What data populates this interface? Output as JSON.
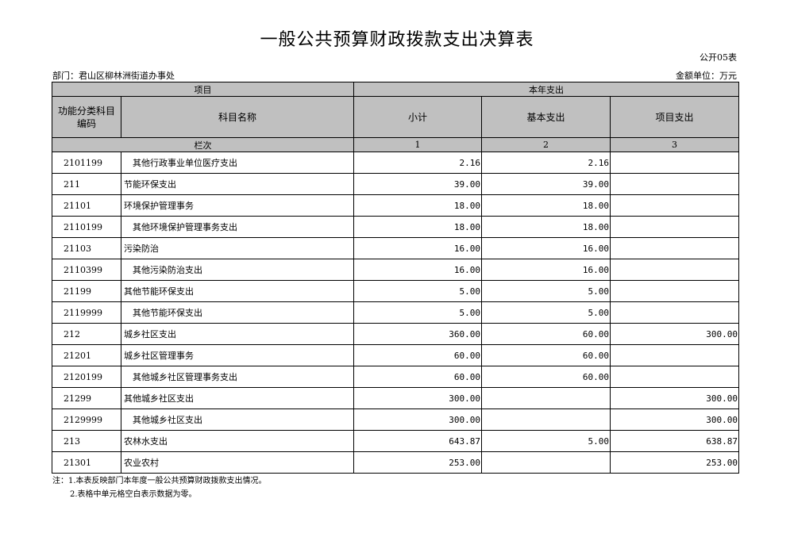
{
  "title": "一般公共预算财政拨款支出决算表",
  "table_no": "公开05表",
  "department": "部门：君山区柳林洲街道办事处",
  "unit": "金额单位：万元",
  "header": {
    "item": "项目",
    "current_year": "本年支出",
    "code": "功能分类科目编码",
    "name": "科目名称",
    "subtotal": "小计",
    "basic": "基本支出",
    "project": "项目支出",
    "column_no": "栏次",
    "col1": "1",
    "col2": "2",
    "col3": "3"
  },
  "rows": [
    {
      "code": "2101199",
      "name": "其他行政事业单位医疗支出",
      "indent": true,
      "subtotal": "2.16",
      "basic": "2.16",
      "project": ""
    },
    {
      "code": "211",
      "name": "节能环保支出",
      "indent": false,
      "subtotal": "39.00",
      "basic": "39.00",
      "project": ""
    },
    {
      "code": "21101",
      "name": "环境保护管理事务",
      "indent": false,
      "subtotal": "18.00",
      "basic": "18.00",
      "project": ""
    },
    {
      "code": "2110199",
      "name": "其他环境保护管理事务支出",
      "indent": true,
      "subtotal": "18.00",
      "basic": "18.00",
      "project": ""
    },
    {
      "code": "21103",
      "name": "污染防治",
      "indent": false,
      "subtotal": "16.00",
      "basic": "16.00",
      "project": ""
    },
    {
      "code": "2110399",
      "name": "其他污染防治支出",
      "indent": true,
      "subtotal": "16.00",
      "basic": "16.00",
      "project": ""
    },
    {
      "code": "21199",
      "name": "其他节能环保支出",
      "indent": false,
      "subtotal": "5.00",
      "basic": "5.00",
      "project": ""
    },
    {
      "code": "2119999",
      "name": "其他节能环保支出",
      "indent": true,
      "subtotal": "5.00",
      "basic": "5.00",
      "project": ""
    },
    {
      "code": "212",
      "name": "城乡社区支出",
      "indent": false,
      "subtotal": "360.00",
      "basic": "60.00",
      "project": "300.00"
    },
    {
      "code": "21201",
      "name": "城乡社区管理事务",
      "indent": false,
      "subtotal": "60.00",
      "basic": "60.00",
      "project": ""
    },
    {
      "code": "2120199",
      "name": "其他城乡社区管理事务支出",
      "indent": true,
      "subtotal": "60.00",
      "basic": "60.00",
      "project": ""
    },
    {
      "code": "21299",
      "name": "其他城乡社区支出",
      "indent": false,
      "subtotal": "300.00",
      "basic": "",
      "project": "300.00"
    },
    {
      "code": "2129999",
      "name": "其他城乡社区支出",
      "indent": true,
      "subtotal": "300.00",
      "basic": "",
      "project": "300.00"
    },
    {
      "code": "213",
      "name": "农林水支出",
      "indent": false,
      "subtotal": "643.87",
      "basic": "5.00",
      "project": "638.87"
    },
    {
      "code": "21301",
      "name": "农业农村",
      "indent": false,
      "subtotal": "253.00",
      "basic": "",
      "project": "253.00"
    }
  ],
  "notes": [
    "注：1.本表反映部门本年度一般公共预算财政拨款支出情况。",
    "2.表格中单元格空白表示数据为零。"
  ],
  "colors": {
    "header_bg": "#c0c0c0",
    "border": "#000000"
  }
}
